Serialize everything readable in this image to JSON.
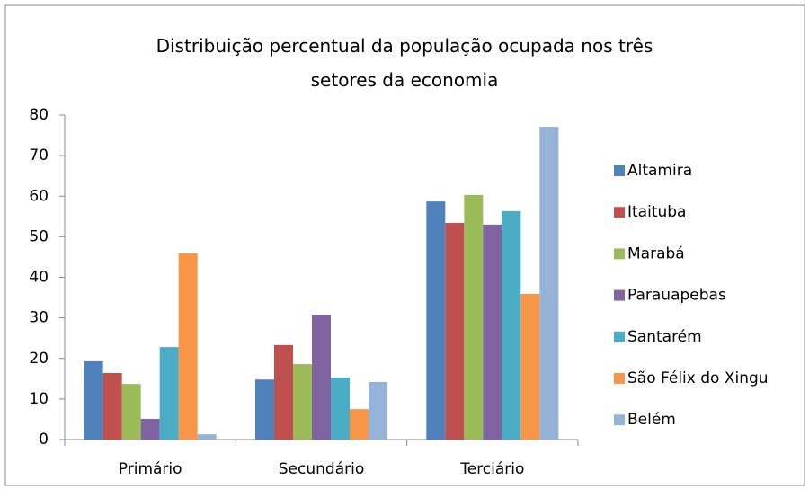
{
  "chart_data": {
    "type": "bar",
    "title": "Distribuição percentual da população ocupada nos três setores da economia",
    "categories": [
      "Primário",
      "Secundário",
      "Terciário"
    ],
    "series": [
      {
        "name": "Altamira",
        "color": "#4f81bd",
        "values": [
          19.3,
          14.8,
          58.7
        ]
      },
      {
        "name": "Itaituba",
        "color": "#c0504d",
        "values": [
          16.4,
          23.3,
          53.4
        ]
      },
      {
        "name": "Marabá",
        "color": "#9bbb59",
        "values": [
          13.7,
          18.6,
          60.3
        ]
      },
      {
        "name": "Parauapebas",
        "color": "#8064a2",
        "values": [
          5.1,
          30.8,
          53.0
        ]
      },
      {
        "name": "Santarém",
        "color": "#4bacc6",
        "values": [
          22.8,
          15.3,
          56.3
        ]
      },
      {
        "name": "São Félix do Xingu",
        "color": "#f79646",
        "values": [
          45.9,
          7.5,
          35.9
        ]
      },
      {
        "name": "Belém",
        "color": "#95b3d7",
        "values": [
          1.3,
          14.2,
          77.1
        ]
      }
    ],
    "ylim": [
      0,
      80
    ],
    "yticks": [
      0,
      10,
      20,
      30,
      40,
      50,
      60,
      70,
      80
    ],
    "grid": false,
    "legend": "right"
  }
}
